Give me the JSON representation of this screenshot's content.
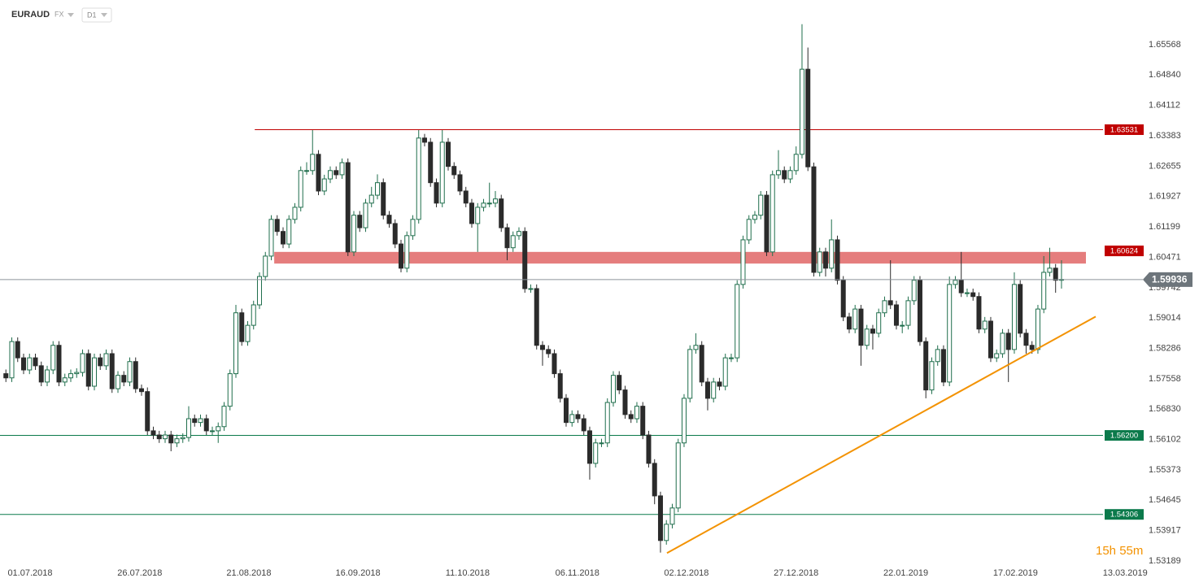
{
  "chart_data": {
    "type": "candlestick",
    "symbol": "EURAUD",
    "market": "FX",
    "timeframe": "D1",
    "countdown": "15h 55m",
    "xlim": [
      -1,
      192.8
    ],
    "ylim": [
      1.53189,
      1.6664
    ],
    "xticks": [
      {
        "value": 4.1,
        "label": "01.07.2018"
      },
      {
        "value": 22.7,
        "label": "26.07.2018"
      },
      {
        "value": 41.2,
        "label": "21.08.2018"
      },
      {
        "value": 59.7,
        "label": "16.09.2018"
      },
      {
        "value": 78.3,
        "label": "11.10.2018"
      },
      {
        "value": 96.9,
        "label": "06.11.2018"
      },
      {
        "value": 115.4,
        "label": "02.12.2018"
      },
      {
        "value": 134.0,
        "label": "27.12.2018"
      },
      {
        "value": 152.6,
        "label": "22.01.2019"
      },
      {
        "value": 171.2,
        "label": "17.02.2019"
      },
      {
        "value": 189.8,
        "label": "13.03.2019"
      }
    ],
    "yticks": [
      1.65568,
      {
        "value": 1.6484,
        "label": "1.64840"
      },
      1.64112,
      1.63383,
      1.62655,
      1.61927,
      1.61199,
      1.60471,
      1.59742,
      1.59014,
      1.58286,
      1.57558,
      {
        "value": 1.5683,
        "label": "1.56830"
      },
      1.56102,
      1.55373,
      1.54645,
      1.53917,
      1.53189
    ],
    "up_color": "#1f6e4c",
    "down_color": "#2b2b2b",
    "open": [
      1.5768,
      1.5758,
      1.5845,
      1.5806,
      1.5777,
      1.5806,
      1.5787,
      1.5748,
      1.5777,
      1.5836,
      1.5748,
      1.5758,
      1.5768,
      1.5771,
      1.5816,
      1.5738,
      1.5806,
      1.5787,
      1.5816,
      1.5732,
      1.5764,
      1.5748,
      1.5797,
      1.5732,
      1.5725,
      1.5631,
      1.5621,
      1.5612,
      1.5621,
      1.5602,
      1.5612,
      1.5615,
      1.566,
      1.5651,
      1.566,
      1.5631,
      1.5631,
      1.5641,
      1.569,
      1.5768,
      1.5914,
      1.5845,
      1.5884,
      1.5933,
      1.6001,
      1.605,
      1.6138,
      1.6109,
      1.6079,
      1.6138,
      1.6167,
      1.6255,
      1.6255,
      1.6294,
      1.6206,
      1.6235,
      1.6255,
      1.6245,
      1.6274,
      1.606,
      1.6148,
      1.6118,
      1.6177,
      1.6196,
      1.6226,
      1.6148,
      1.6128,
      1.6079,
      1.6021,
      1.6099,
      1.6138,
      1.6333,
      1.6323,
      1.6226,
      1.6177,
      1.6323,
      1.6265,
      1.6245,
      1.6206,
      1.6177,
      1.6128,
      1.6167,
      1.6177,
      1.6177,
      1.6187,
      1.6118,
      1.607,
      1.6099,
      1.6109,
      1.5972,
      1.5972,
      1.5836,
      1.5826,
      1.5816,
      1.5768,
      1.5709,
      1.5651,
      1.567,
      1.566,
      1.5631,
      1.5553,
      1.5602,
      1.5602,
      1.5699,
      1.5764,
      1.5729,
      1.567,
      1.566,
      1.569,
      1.5621,
      1.5553,
      1.5475,
      1.5368,
      1.5407,
      1.5446,
      1.5602,
      1.5709,
      1.5826,
      1.5836,
      1.5748,
      1.5709,
      1.5748,
      1.5738,
      1.5806,
      1.5806,
      1.5982,
      1.6089,
      1.6138,
      1.6148,
      1.6196,
      1.606,
      1.6245,
      1.6255,
      1.6235,
      1.6255,
      1.6294,
      1.6498,
      1.6264,
      1.6011,
      1.606,
      1.6021,
      1.6089,
      1.5992,
      1.5904,
      1.5875,
      1.5923,
      1.5836,
      1.5875,
      1.5865,
      1.5914,
      1.5943,
      1.5933,
      1.5884,
      1.5884,
      1.5943,
      1.5992,
      1.5845,
      1.5729,
      1.5797,
      1.5826,
      1.5748,
      1.5982,
      1.5992,
      1.5962,
      1.5962,
      1.5953,
      1.5875,
      1.5894,
      1.5806,
      1.5816,
      1.5865,
      1.5826,
      1.5982,
      1.5865,
      1.5836,
      1.5826,
      1.5923,
      1.6011,
      1.6021,
      1.5992
    ],
    "high": [
      1.5778,
      1.5855,
      1.5855,
      1.5816,
      1.5816,
      1.5816,
      1.5797,
      1.5787,
      1.5846,
      1.5846,
      1.5768,
      1.5778,
      1.5781,
      1.5826,
      1.5826,
      1.5816,
      1.5816,
      1.5826,
      1.5826,
      1.5774,
      1.5774,
      1.5807,
      1.5807,
      1.5742,
      1.5735,
      1.5641,
      1.5631,
      1.5631,
      1.5631,
      1.5622,
      1.5625,
      1.569,
      1.567,
      1.567,
      1.567,
      1.5641,
      1.5651,
      1.57,
      1.5778,
      1.5933,
      1.5924,
      1.5894,
      1.5943,
      1.6011,
      1.606,
      1.6148,
      1.6148,
      1.6119,
      1.6148,
      1.6177,
      1.6265,
      1.6275,
      1.6352,
      1.6304,
      1.6245,
      1.6265,
      1.6265,
      1.6284,
      1.6284,
      1.6158,
      1.6158,
      1.6187,
      1.6216,
      1.6246,
      1.6236,
      1.6158,
      1.6138,
      1.6089,
      1.6109,
      1.6148,
      1.6352,
      1.6343,
      1.6333,
      1.6236,
      1.6352,
      1.6333,
      1.6275,
      1.6255,
      1.6216,
      1.6187,
      1.6177,
      1.6187,
      1.6226,
      1.6206,
      1.6197,
      1.6128,
      1.6109,
      1.6119,
      1.6119,
      1.5982,
      1.5982,
      1.5846,
      1.5836,
      1.5826,
      1.5778,
      1.5719,
      1.568,
      1.568,
      1.567,
      1.5641,
      1.5612,
      1.5612,
      1.5709,
      1.5774,
      1.5774,
      1.5739,
      1.568,
      1.57,
      1.57,
      1.5631,
      1.5563,
      1.5485,
      1.5417,
      1.5456,
      1.5612,
      1.5719,
      1.5836,
      1.5865,
      1.5846,
      1.5758,
      1.5758,
      1.5758,
      1.5816,
      1.5816,
      1.5992,
      1.6099,
      1.6148,
      1.6158,
      1.6206,
      1.6206,
      1.6255,
      1.6304,
      1.6265,
      1.6265,
      1.6313,
      1.6606,
      1.655,
      1.6274,
      1.607,
      1.607,
      1.6138,
      1.6099,
      1.6002,
      1.5914,
      1.5933,
      1.5933,
      1.5885,
      1.5885,
      1.5924,
      1.5953,
      1.604,
      1.5943,
      1.5894,
      1.5953,
      1.6002,
      1.6002,
      1.5855,
      1.5807,
      1.5836,
      1.5836,
      1.6001,
      1.6002,
      1.606,
      1.5972,
      1.5972,
      1.5963,
      1.5904,
      1.5904,
      1.5826,
      1.5875,
      1.5875,
      1.6011,
      1.5992,
      1.5875,
      1.5846,
      1.5933,
      1.605,
      1.607,
      1.6031,
      1.604
    ],
    "low": [
      1.5748,
      1.5748,
      1.5796,
      1.5767,
      1.5767,
      1.5777,
      1.5738,
      1.5738,
      1.5767,
      1.5738,
      1.5738,
      1.5748,
      1.5758,
      1.5761,
      1.5728,
      1.5728,
      1.5777,
      1.5777,
      1.5722,
      1.5722,
      1.5738,
      1.5738,
      1.5722,
      1.5715,
      1.5621,
      1.5611,
      1.5602,
      1.5602,
      1.5582,
      1.5592,
      1.5602,
      1.5605,
      1.5641,
      1.5641,
      1.5621,
      1.5621,
      1.5602,
      1.5631,
      1.568,
      1.5758,
      1.5835,
      1.5835,
      1.5874,
      1.5923,
      1.5991,
      1.604,
      1.6099,
      1.6069,
      1.6069,
      1.6128,
      1.6157,
      1.6245,
      1.6245,
      1.6196,
      1.6196,
      1.6225,
      1.6235,
      1.6235,
      1.605,
      1.605,
      1.6108,
      1.6108,
      1.6167,
      1.6186,
      1.6138,
      1.6118,
      1.6069,
      1.6011,
      1.6011,
      1.6089,
      1.6128,
      1.6313,
      1.6216,
      1.6167,
      1.6167,
      1.6255,
      1.6235,
      1.6196,
      1.6167,
      1.6118,
      1.606,
      1.6157,
      1.6167,
      1.6167,
      1.6108,
      1.604,
      1.606,
      1.6089,
      1.5962,
      1.5962,
      1.5826,
      1.5787,
      1.5806,
      1.5758,
      1.5699,
      1.5641,
      1.5641,
      1.565,
      1.5621,
      1.5514,
      1.5543,
      1.5592,
      1.5592,
      1.5689,
      1.5719,
      1.566,
      1.565,
      1.565,
      1.5611,
      1.5543,
      1.5455,
      1.5339,
      1.5358,
      1.5397,
      1.5436,
      1.5592,
      1.5699,
      1.5816,
      1.5738,
      1.568,
      1.5699,
      1.5728,
      1.5728,
      1.5796,
      1.5796,
      1.5972,
      1.6079,
      1.6128,
      1.6138,
      1.605,
      1.605,
      1.6235,
      1.6225,
      1.6225,
      1.6245,
      1.6284,
      1.6254,
      1.6001,
      1.6001,
      1.6001,
      1.6011,
      1.5982,
      1.5894,
      1.5865,
      1.5865,
      1.5787,
      1.5826,
      1.5826,
      1.5855,
      1.5904,
      1.5923,
      1.5874,
      1.5865,
      1.5874,
      1.5933,
      1.5835,
      1.5709,
      1.5719,
      1.5787,
      1.5738,
      1.5738,
      1.5972,
      1.5952,
      1.5952,
      1.5943,
      1.5865,
      1.5865,
      1.5796,
      1.5796,
      1.5806,
      1.5748,
      1.5816,
      1.5855,
      1.5816,
      1.5816,
      1.5816,
      1.5913,
      1.6001,
      1.5962,
      1.5972
    ],
    "close": [
      1.5758,
      1.5845,
      1.5806,
      1.5777,
      1.5806,
      1.5787,
      1.5748,
      1.5777,
      1.5836,
      1.5748,
      1.5758,
      1.5768,
      1.5771,
      1.5816,
      1.5738,
      1.5806,
      1.5787,
      1.5816,
      1.5732,
      1.5764,
      1.5748,
      1.5797,
      1.5732,
      1.5725,
      1.5631,
      1.5621,
      1.5612,
      1.5621,
      1.5602,
      1.5612,
      1.5615,
      1.566,
      1.5651,
      1.566,
      1.5631,
      1.5631,
      1.5641,
      1.569,
      1.5768,
      1.5914,
      1.5845,
      1.5884,
      1.5933,
      1.6001,
      1.605,
      1.6138,
      1.6109,
      1.6079,
      1.6138,
      1.6167,
      1.6255,
      1.6255,
      1.6294,
      1.6206,
      1.6235,
      1.6255,
      1.6245,
      1.6274,
      1.606,
      1.6148,
      1.6118,
      1.6177,
      1.6196,
      1.6226,
      1.6148,
      1.6128,
      1.6079,
      1.6021,
      1.6099,
      1.6138,
      1.6333,
      1.6323,
      1.6226,
      1.6177,
      1.6323,
      1.6265,
      1.6245,
      1.6206,
      1.6177,
      1.6128,
      1.6167,
      1.6177,
      1.6177,
      1.6187,
      1.6118,
      1.607,
      1.6099,
      1.6109,
      1.5972,
      1.5972,
      1.5836,
      1.5826,
      1.5816,
      1.5768,
      1.5709,
      1.5651,
      1.567,
      1.566,
      1.5631,
      1.5553,
      1.5602,
      1.5602,
      1.5699,
      1.5764,
      1.5729,
      1.567,
      1.566,
      1.569,
      1.5621,
      1.5553,
      1.5475,
      1.5368,
      1.5407,
      1.5446,
      1.5602,
      1.5709,
      1.5826,
      1.5836,
      1.5748,
      1.5709,
      1.5748,
      1.5738,
      1.5806,
      1.5806,
      1.5982,
      1.6089,
      1.6138,
      1.6148,
      1.6196,
      1.606,
      1.6245,
      1.6255,
      1.6235,
      1.6255,
      1.6294,
      1.6498,
      1.6264,
      1.6011,
      1.606,
      1.6021,
      1.6089,
      1.5992,
      1.5904,
      1.5875,
      1.5923,
      1.5836,
      1.5875,
      1.5865,
      1.5914,
      1.5943,
      1.5933,
      1.5884,
      1.5884,
      1.5943,
      1.5992,
      1.5845,
      1.5729,
      1.5797,
      1.5826,
      1.5748,
      1.5982,
      1.5992,
      1.5962,
      1.5962,
      1.5953,
      1.5875,
      1.5894,
      1.5806,
      1.5816,
      1.5865,
      1.5826,
      1.5982,
      1.5865,
      1.5836,
      1.5826,
      1.5923,
      1.6011,
      1.6021,
      1.5992,
      1.5994
    ],
    "levels": [
      {
        "value": 1.63531,
        "color": "#c00000",
        "from": 42.2
      },
      {
        "value": 1.60624,
        "color": "#c00000",
        "zone": [
          1.6032,
          1.606
        ],
        "from": 45.5
      },
      {
        "value": {
          "value": 1.562,
          "label": "1.56200"
        },
        "color": "#0b7a4b"
      },
      {
        "value": 1.54306,
        "color": "#0b7a4b"
      }
    ],
    "last_price": {
      "value": 1.59936,
      "color": "#6d757b"
    },
    "trendline": {
      "x": [
        112.1,
        184.8
      ],
      "y": [
        1.5338,
        1.5905
      ],
      "color": "#f39200"
    }
  }
}
